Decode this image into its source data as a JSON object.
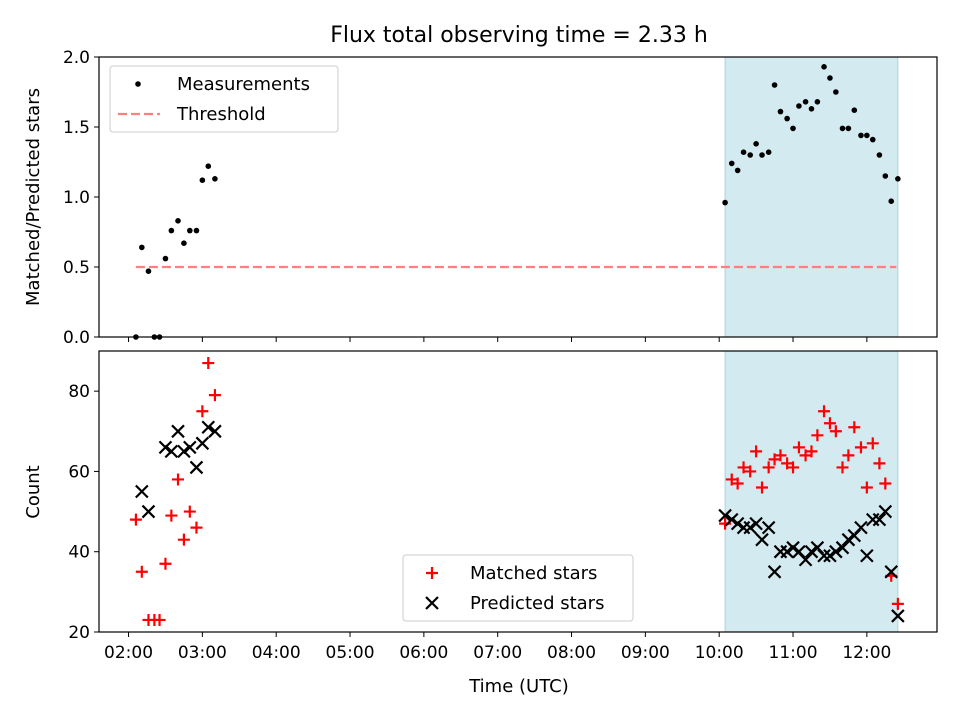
{
  "chart_data": {
    "title": "Flux total observing time = 2.33 h",
    "xlabel": "Time (UTC)",
    "x_ticks": [
      "02:00",
      "03:00",
      "04:00",
      "05:00",
      "06:00",
      "07:00",
      "08:00",
      "09:00",
      "10:00",
      "11:00",
      "12:00"
    ],
    "x_unit": "hours",
    "xlim": [
      1.6,
      12.95
    ],
    "shaded_interval": {
      "x": [
        10.08,
        12.42
      ],
      "color": "#d3eaf0"
    },
    "panels": [
      {
        "type": "scatter",
        "ylabel": "Matched/Predicted stars",
        "ylim": [
          0,
          2.0
        ],
        "y_ticks": [
          "0.0",
          "0.5",
          "1.0",
          "1.5",
          "2.0"
        ],
        "legend": {
          "position": "top-left",
          "entries": [
            "Measurements",
            "Threshold"
          ]
        },
        "series": [
          {
            "name": "Measurements",
            "marker": "dot",
            "color": "#000000",
            "x": [
              2.1,
              2.18,
              2.27,
              2.35,
              2.42,
              2.5,
              2.58,
              2.67,
              2.75,
              2.83,
              2.92,
              3.0,
              3.08,
              3.17,
              10.08,
              10.17,
              10.25,
              10.33,
              10.42,
              10.5,
              10.58,
              10.67,
              10.75,
              10.83,
              10.92,
              11.0,
              11.08,
              11.17,
              11.25,
              11.33,
              11.42,
              11.5,
              11.58,
              11.67,
              11.75,
              11.83,
              11.92,
              12.0,
              12.08,
              12.17,
              12.25,
              12.33,
              12.42
            ],
            "y": [
              0.0,
              0.64,
              0.47,
              0.0,
              0.0,
              0.56,
              0.76,
              0.83,
              0.67,
              0.76,
              0.76,
              1.12,
              1.22,
              1.13,
              0.96,
              1.24,
              1.19,
              1.32,
              1.3,
              1.38,
              1.3,
              1.32,
              1.8,
              1.61,
              1.56,
              1.49,
              1.65,
              1.68,
              1.63,
              1.68,
              1.93,
              1.85,
              1.75,
              1.49,
              1.49,
              1.62,
              1.44,
              1.44,
              1.41,
              1.3,
              1.15,
              0.97,
              1.13
            ]
          },
          {
            "name": "Threshold",
            "style": "dashed-line",
            "color": "#ff7f7f",
            "x": [
              2.1,
              12.4
            ],
            "y": [
              0.5,
              0.5
            ]
          }
        ]
      },
      {
        "type": "scatter",
        "ylabel": "Count",
        "ylim": [
          20,
          90
        ],
        "y_ticks": [
          "20",
          "40",
          "60",
          "80"
        ],
        "legend": {
          "position": "bottom-center",
          "entries": [
            "Matched stars",
            "Predicted stars"
          ]
        },
        "series": [
          {
            "name": "Matched stars",
            "marker": "plus",
            "color": "#ff0000",
            "x": [
              2.1,
              2.18,
              2.27,
              2.35,
              2.42,
              2.5,
              2.58,
              2.67,
              2.75,
              2.83,
              2.92,
              3.0,
              3.08,
              3.17,
              10.08,
              10.17,
              10.25,
              10.33,
              10.42,
              10.5,
              10.58,
              10.67,
              10.75,
              10.83,
              10.92,
              11.0,
              11.08,
              11.17,
              11.25,
              11.33,
              11.42,
              11.5,
              11.58,
              11.67,
              11.75,
              11.83,
              11.92,
              12.0,
              12.08,
              12.17,
              12.25,
              12.33,
              12.42
            ],
            "y": [
              48,
              35,
              23,
              23,
              23,
              37,
              49,
              58,
              43,
              50,
              46,
              75,
              87,
              79,
              47,
              58,
              57,
              61,
              60,
              65,
              56,
              61,
              63,
              64,
              62,
              61,
              66,
              64,
              65,
              69,
              75,
              72,
              70,
              61,
              64,
              71,
              66,
              56,
              67,
              62,
              57,
              34,
              27
            ]
          },
          {
            "name": "Predicted stars",
            "marker": "x",
            "color": "#000000",
            "x": [
              2.18,
              2.27,
              2.5,
              2.58,
              2.67,
              2.75,
              2.83,
              2.92,
              3.0,
              3.08,
              3.17,
              10.08,
              10.17,
              10.25,
              10.33,
              10.42,
              10.5,
              10.58,
              10.67,
              10.75,
              10.83,
              10.92,
              11.0,
              11.08,
              11.17,
              11.25,
              11.33,
              11.42,
              11.5,
              11.58,
              11.67,
              11.75,
              11.83,
              11.92,
              12.0,
              12.08,
              12.17,
              12.25,
              12.33,
              12.42
            ],
            "y": [
              55,
              50,
              66,
              65,
              70,
              65,
              66,
              61,
              67,
              71,
              70,
              49,
              48,
              47,
              46,
              46,
              47,
              43,
              46,
              35,
              40,
              40,
              41,
              40,
              38,
              40,
              41,
              39,
              39,
              40,
              41,
              43,
              44,
              46,
              39,
              48,
              48,
              50,
              35,
              24
            ]
          }
        ]
      }
    ]
  }
}
